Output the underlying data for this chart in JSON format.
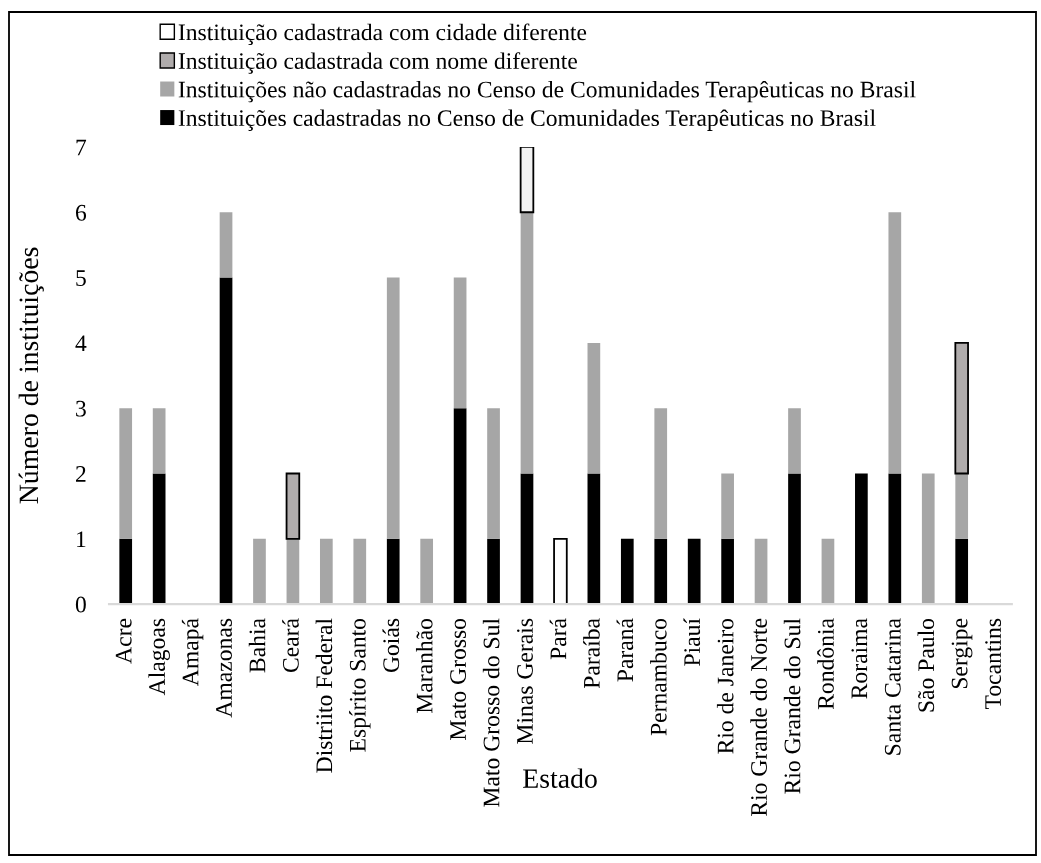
{
  "chart_data": {
    "type": "bar",
    "stacked": true,
    "xlabel": "Estado",
    "ylabel": "Número de instituições",
    "categories": [
      "Acre",
      "Alagoas",
      "Amapá",
      "Amazonas",
      "Bahia",
      "Ceará",
      "Distriito Federal",
      "Espírito Santo",
      "Goiás",
      "Maranhão",
      "Mato Grosso",
      "Mato Grosso do Sul",
      "Minas Gerais",
      "Pará",
      "Paraíba",
      "Paraná",
      "Pernambuco",
      "Piauí",
      "Rio de Janeiro",
      "Rio Grande do Norte",
      "Rio Grande do Sul",
      "Rondônia",
      "Roraima",
      "Santa Catarina",
      "São Paulo",
      "Sergipe",
      "Tocantins"
    ],
    "series": [
      {
        "name": "Instituições cadastradas no Censo de Comunidades Terapêuticas no Brasil",
        "color": "#000000",
        "values": [
          1,
          2,
          null,
          5,
          null,
          null,
          null,
          null,
          1,
          null,
          3,
          1,
          2,
          null,
          2,
          1,
          1,
          1,
          1,
          null,
          2,
          null,
          2,
          2,
          null,
          1,
          null
        ]
      },
      {
        "name": "Instituições não cadastradas no Censo de Comunidades Terapêuticas no Brasil",
        "color": "#a6a6a6",
        "values": [
          2,
          1,
          null,
          1,
          1,
          1,
          1,
          1,
          4,
          1,
          2,
          2,
          4,
          null,
          2,
          null,
          2,
          null,
          1,
          1,
          1,
          1,
          null,
          4,
          2,
          1,
          null
        ]
      },
      {
        "name": "Instituição cadastrada com nome diferente",
        "color": "#b0acac",
        "values": [
          null,
          null,
          null,
          null,
          null,
          1,
          null,
          null,
          null,
          null,
          null,
          null,
          null,
          null,
          null,
          null,
          null,
          null,
          null,
          null,
          null,
          null,
          null,
          null,
          null,
          2,
          null
        ]
      },
      {
        "name": "Instituição cadastrada com cidade diferente",
        "color": "#ffffff",
        "colors": [
          null,
          null,
          null,
          null,
          null,
          null,
          null,
          null,
          null,
          null,
          null,
          null,
          "#f2f2f2",
          "#ffffff",
          null,
          null,
          null,
          null,
          null,
          null,
          null,
          null,
          null,
          null,
          null,
          null,
          null
        ],
        "values": [
          null,
          null,
          null,
          null,
          null,
          null,
          null,
          null,
          null,
          null,
          null,
          null,
          1,
          1,
          null,
          null,
          null,
          null,
          null,
          null,
          null,
          null,
          null,
          null,
          null,
          null,
          null
        ]
      }
    ],
    "ylim": [
      0,
      7
    ],
    "yticks": [
      0,
      1,
      2,
      3,
      4,
      5,
      6,
      7
    ],
    "legend": "top"
  }
}
